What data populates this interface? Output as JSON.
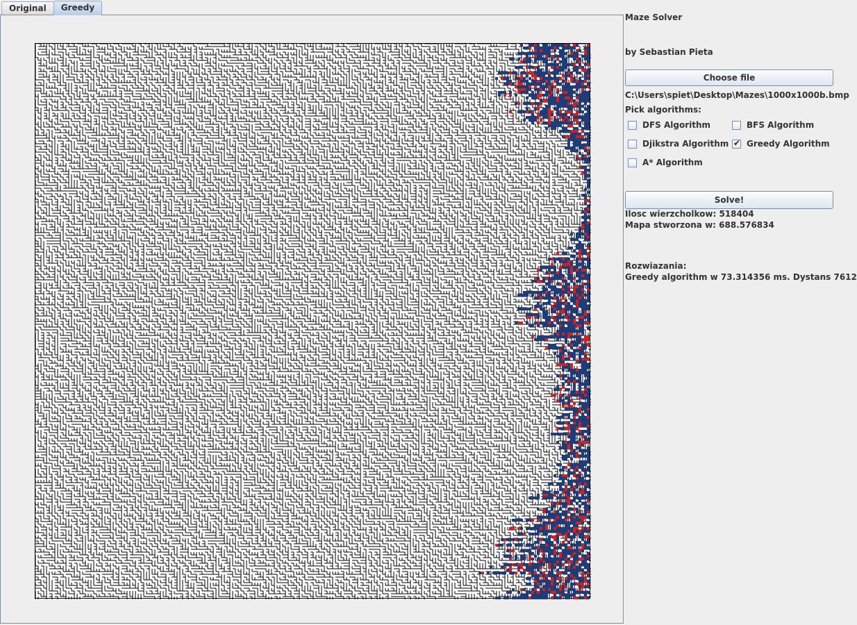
{
  "tabs": [
    {
      "label": "Original",
      "active": false
    },
    {
      "label": "Greedy",
      "active": true
    }
  ],
  "header": {
    "title": "Maze Solver",
    "author": "by Sebastian Pieta"
  },
  "file": {
    "choose_label": "Choose file",
    "path": "C:\\Users\\spiet\\Desktop\\Mazes\\1000x1000b.bmp"
  },
  "algorithms": {
    "heading": "Pick algorithms:",
    "items": [
      {
        "label": "DFS Algorithm",
        "checked": false
      },
      {
        "label": "BFS Algorithm",
        "checked": false
      },
      {
        "label": "Djikstra Algorithm",
        "checked": false
      },
      {
        "label": "Greedy Algorithm",
        "checked": true
      },
      {
        "label": "A* Algorithm",
        "checked": false
      }
    ],
    "check_mark": "✔"
  },
  "solve_label": "Solve!",
  "stats": {
    "vertices": "Ilosc wierzcholkow: 518404",
    "map_time": "Mapa stworzona w: 688.576834"
  },
  "results": {
    "heading": "Rozwiazania:",
    "greedy": "Greedy algorithm w 73.314356 ms. Dystans 7612"
  },
  "colors": {
    "explored": "#1f3c7a",
    "path": "#cc2222",
    "wall": "#000000",
    "floor": "#ffffff"
  }
}
